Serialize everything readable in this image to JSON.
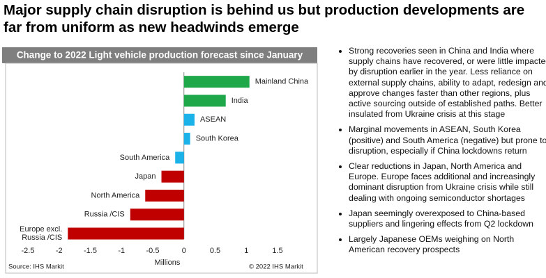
{
  "title": "Major supply chain disruption is behind us but production developments are far from uniform as new headwinds emerge",
  "chart_data": {
    "type": "hbar",
    "title": "Change to 2022 Light vehicle production forecast since January",
    "categories": [
      "Mainland China",
      "India",
      "ASEAN",
      "South Korea",
      "South America",
      "Japan",
      "North America",
      "Russia /CIS",
      "Europe excl. Russia /CIS"
    ],
    "values": [
      1.05,
      0.67,
      0.17,
      0.1,
      -0.14,
      -0.36,
      -0.62,
      -0.86,
      -1.86
    ],
    "colors": [
      "#1ea84a",
      "#1ea84a",
      "#1ab2e8",
      "#1ab2e8",
      "#1ab2e8",
      "#c00000",
      "#c00000",
      "#c00000",
      "#c00000"
    ],
    "xlim": [
      -2.5,
      1.5
    ],
    "xticks": [
      -2.5,
      -2,
      -1.5,
      -1,
      -0.5,
      0,
      0.5,
      1,
      1.5
    ],
    "xlabel": "Millions",
    "source": "Source: IHS Markit",
    "copyright": "© 2022 IHS Markit"
  },
  "bullets": [
    "Strong recoveries seen in China and India where supply chains have recovered, or were little impacted by disruption earlier in the year. Less reliance on external supply chains, ability to adapt, redesign and approve changes faster than other regions, plus active sourcing outside of established paths. Better insulated from Ukraine crisis at this stage",
    "Marginal movements in ASEAN, South Korea (positive) and South America (negative) but prone to disruption, especially if China lockdowns return",
    "Clear reductions in Japan, North America and Europe. Europe faces additional and increasingly dominant disruption from Ukraine crisis while still dealing with ongoing semiconductor shortages",
    "Japan seemingly overexposed to China-based suppliers and lingering effects from Q2 lockdown",
    "Largely Japanese OEMs weighing on North American recovery prospects"
  ]
}
